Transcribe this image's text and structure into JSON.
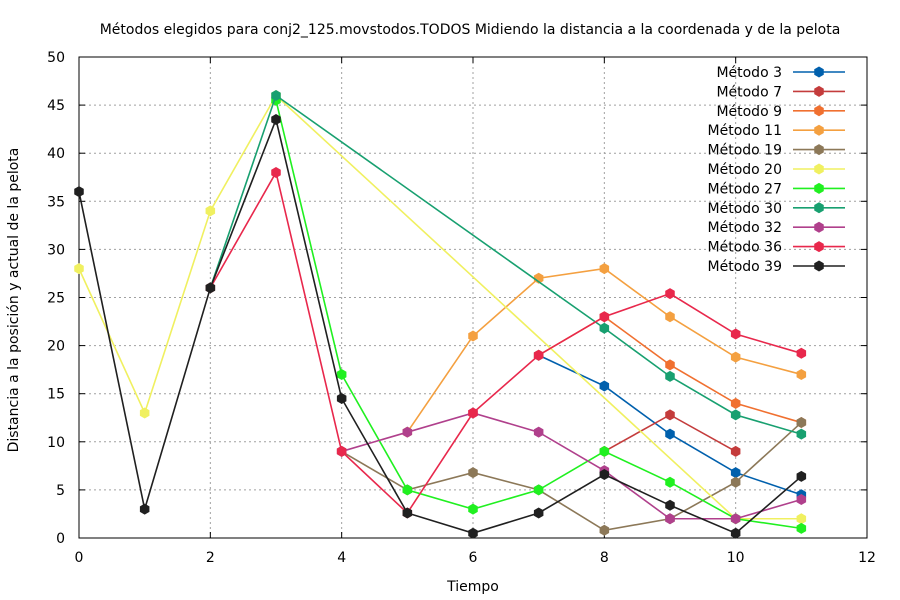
{
  "chart_data": {
    "type": "line",
    "title": "Métodos elegidos para conj2_125.movstodos.TODOS Midiendo la distancia a la coordenada y de la pelota",
    "xlabel": "Tiempo",
    "ylabel": "Distancia a la posición y actual de la pelota",
    "xlim": [
      0,
      12
    ],
    "ylim": [
      0,
      50
    ],
    "x_ticks": [
      "0",
      "2",
      "4",
      "6",
      "8",
      "10",
      "12"
    ],
    "y_ticks": [
      "0",
      "5",
      "10",
      "15",
      "20",
      "25",
      "30",
      "35",
      "40",
      "45",
      "50"
    ],
    "grid": true,
    "legend_position": "top-right",
    "series": [
      {
        "name": "Método 3",
        "color": "#0060ad",
        "x": [
          7,
          8,
          9,
          10,
          11
        ],
        "y": [
          19,
          15.8,
          10.8,
          6.8,
          4.5
        ]
      },
      {
        "name": "Método 7",
        "color": "#c43c3c",
        "x": [
          8,
          9,
          10
        ],
        "y": [
          9,
          12.8,
          9
        ]
      },
      {
        "name": "Método 9",
        "color": "#f07030",
        "x": [
          7,
          8,
          9,
          10,
          11
        ],
        "y": [
          19,
          23,
          18,
          14,
          12
        ]
      },
      {
        "name": "Método 11",
        "color": "#f4a040",
        "x": [
          5,
          6,
          7,
          8,
          9,
          10,
          11
        ],
        "y": [
          11,
          21,
          27,
          28,
          23,
          18.8,
          17
        ]
      },
      {
        "name": "Método 19",
        "color": "#8c7858",
        "x": [
          4,
          5,
          6,
          7,
          8,
          9,
          10,
          11
        ],
        "y": [
          9,
          5,
          6.8,
          5,
          0.8,
          2,
          5.8,
          12
        ]
      },
      {
        "name": "Método 20",
        "color": "#f0f060",
        "x": [
          0,
          1,
          2,
          3,
          10,
          11
        ],
        "y": [
          28,
          13,
          34,
          46,
          2,
          2
        ]
      },
      {
        "name": "Método 27",
        "color": "#20f020",
        "x": [
          3,
          4,
          5,
          6,
          7,
          8,
          9,
          10,
          11
        ],
        "y": [
          45.5,
          17,
          5,
          3,
          5,
          9,
          5.8,
          2,
          1
        ]
      },
      {
        "name": "Método 30",
        "color": "#18a070",
        "x": [
          2,
          3,
          8,
          9,
          10,
          11
        ],
        "y": [
          26,
          46,
          21.8,
          16.8,
          12.8,
          10.8
        ]
      },
      {
        "name": "Método 32",
        "color": "#b0408c",
        "x": [
          4,
          5,
          6,
          7,
          8,
          9,
          10,
          11
        ],
        "y": [
          9,
          11,
          13,
          11,
          7,
          2,
          2,
          4
        ]
      },
      {
        "name": "Método 36",
        "color": "#e8284c",
        "x": [
          2,
          3,
          4,
          5,
          6,
          7,
          8,
          9,
          10,
          11
        ],
        "y": [
          26,
          38,
          9,
          2.6,
          13,
          19,
          23,
          25.4,
          21.2,
          19.2
        ]
      },
      {
        "name": "Método 39",
        "color": "#202020",
        "x": [
          0,
          1,
          2,
          3,
          4,
          5,
          6,
          7,
          8,
          9,
          10,
          11
        ],
        "y": [
          36,
          3,
          26,
          43.5,
          14.5,
          2.6,
          0.5,
          2.6,
          6.6,
          3.4,
          0.5,
          6.4
        ]
      }
    ]
  }
}
